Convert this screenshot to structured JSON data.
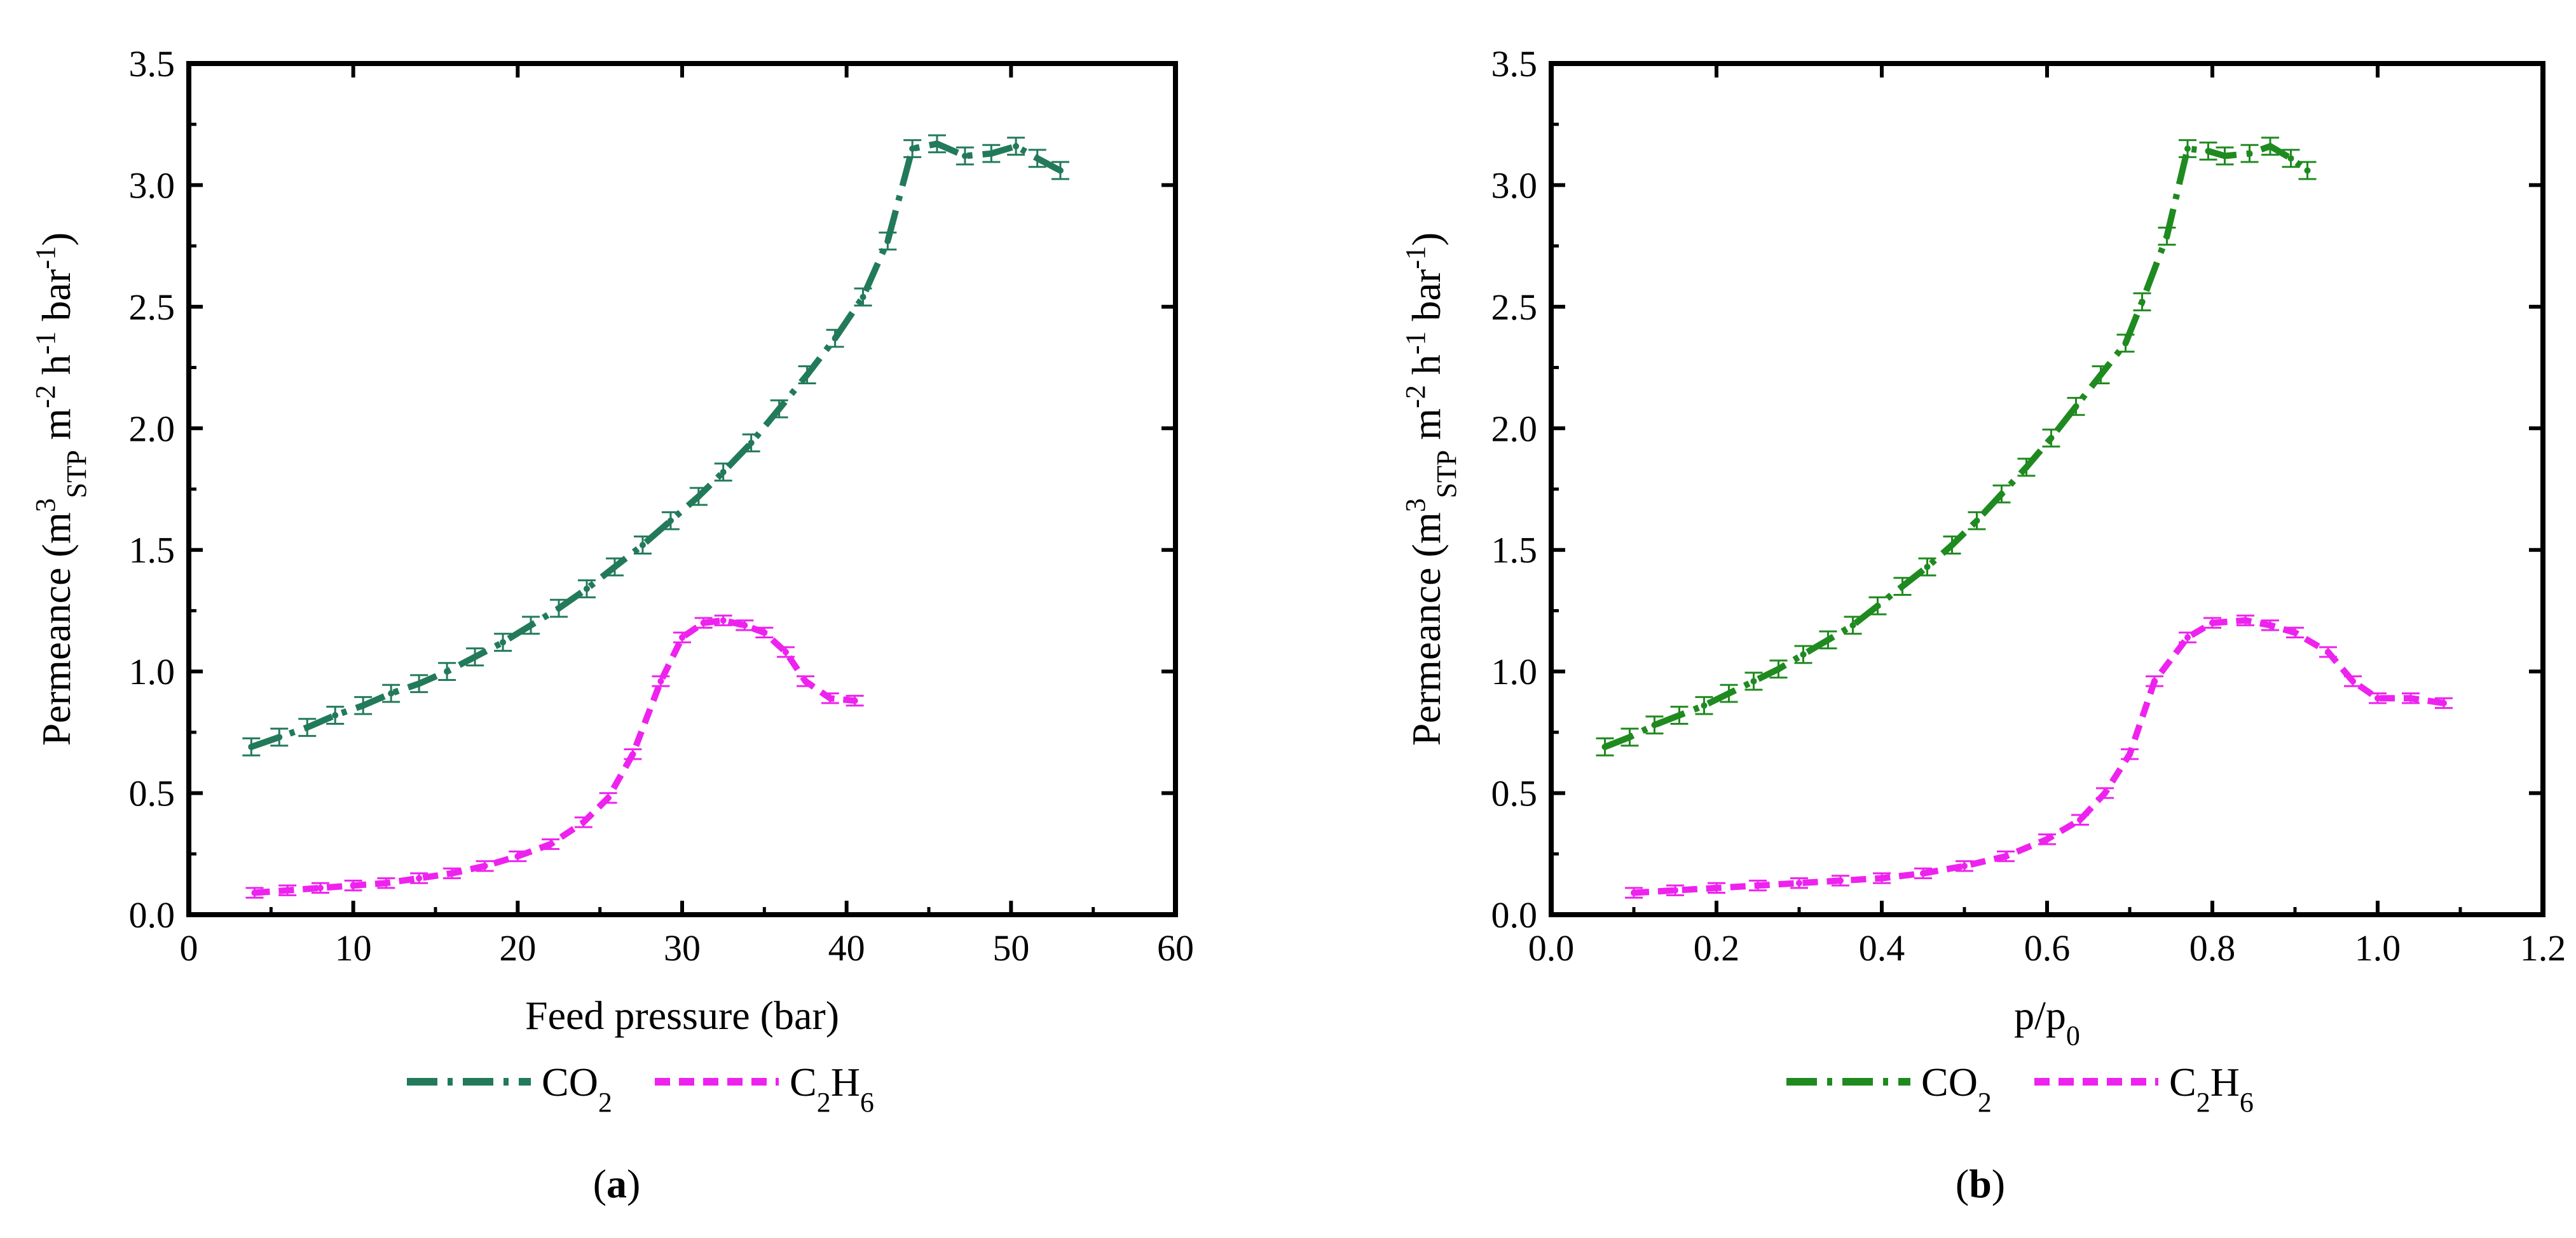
{
  "chart_data": [
    {
      "type": "line",
      "panel_label": "a",
      "xlabel": "Feed pressure (bar)",
      "ylabel": "Permeance (m³STP m⁻² h⁻¹ bar⁻¹)",
      "xlim": [
        0,
        60
      ],
      "ylim": [
        0,
        3.5
      ],
      "xticks": [
        0,
        10,
        20,
        30,
        40,
        50,
        60
      ],
      "yticks": [
        0.0,
        0.5,
        1.0,
        1.5,
        2.0,
        2.5,
        3.0,
        3.5
      ],
      "legend": [
        "CO2",
        "C2H6"
      ],
      "series": [
        {
          "name": "CO2",
          "color": "#227a5a",
          "style": "dash-dot",
          "x": [
            3.8,
            5.5,
            7.2,
            8.9,
            10.6,
            12.3,
            14.0,
            15.7,
            17.4,
            19.1,
            20.8,
            22.5,
            24.2,
            25.9,
            27.6,
            29.3,
            31.0,
            32.5,
            34.2,
            35.9,
            37.6,
            39.3,
            41.0,
            42.5,
            44.0,
            45.5,
            47.2,
            48.8,
            50.3,
            51.6,
            53.0
          ],
          "y": [
            0.69,
            0.73,
            0.77,
            0.82,
            0.86,
            0.91,
            0.95,
            1.0,
            1.06,
            1.12,
            1.19,
            1.26,
            1.34,
            1.43,
            1.52,
            1.62,
            1.72,
            1.82,
            1.94,
            2.08,
            2.22,
            2.37,
            2.54,
            2.77,
            3.15,
            3.17,
            3.12,
            3.13,
            3.16,
            3.11,
            3.06
          ]
        },
        {
          "name": "C2H6",
          "color": "#ee22ee",
          "style": "dash",
          "x": [
            4.0,
            6.0,
            8.0,
            10.0,
            12.0,
            14.0,
            16.0,
            18.0,
            20.0,
            22.0,
            24.0,
            25.5,
            27.0,
            28.7,
            30.0,
            31.3,
            32.5,
            33.8,
            35.0,
            36.3,
            37.5,
            39.0,
            40.5
          ],
          "y": [
            0.09,
            0.1,
            0.11,
            0.12,
            0.13,
            0.15,
            0.17,
            0.2,
            0.24,
            0.29,
            0.38,
            0.48,
            0.66,
            0.96,
            1.14,
            1.2,
            1.21,
            1.19,
            1.16,
            1.08,
            0.96,
            0.89,
            0.88
          ]
        }
      ]
    },
    {
      "type": "line",
      "panel_label": "b",
      "xlabel": "p/p0",
      "ylabel": "Permeance (m³STP m⁻² h⁻¹ bar⁻¹)",
      "xlim": [
        0.0,
        1.2
      ],
      "ylim": [
        0,
        3.5
      ],
      "xticks": [
        0.0,
        0.2,
        0.4,
        0.6,
        0.8,
        1.0,
        1.2
      ],
      "yticks": [
        0.0,
        0.5,
        1.0,
        1.5,
        2.0,
        2.5,
        3.0,
        3.5
      ],
      "legend": [
        "CO2",
        "C2H6"
      ],
      "series": [
        {
          "name": "CO2",
          "color": "#1f8a1f",
          "style": "dash-dot",
          "x": [
            0.065,
            0.095,
            0.125,
            0.155,
            0.185,
            0.215,
            0.245,
            0.275,
            0.305,
            0.335,
            0.365,
            0.395,
            0.425,
            0.455,
            0.485,
            0.515,
            0.545,
            0.575,
            0.605,
            0.635,
            0.665,
            0.695,
            0.715,
            0.745,
            0.77,
            0.795,
            0.815,
            0.845,
            0.87,
            0.895,
            0.915
          ],
          "y": [
            0.69,
            0.73,
            0.78,
            0.82,
            0.86,
            0.91,
            0.96,
            1.01,
            1.07,
            1.13,
            1.19,
            1.27,
            1.35,
            1.43,
            1.52,
            1.62,
            1.73,
            1.84,
            1.96,
            2.09,
            2.22,
            2.35,
            2.52,
            2.79,
            3.15,
            3.14,
            3.12,
            3.13,
            3.16,
            3.11,
            3.06
          ]
        },
        {
          "name": "C2H6",
          "color": "#ee22ee",
          "style": "dash",
          "x": [
            0.1,
            0.15,
            0.2,
            0.25,
            0.3,
            0.35,
            0.4,
            0.45,
            0.5,
            0.55,
            0.6,
            0.64,
            0.67,
            0.7,
            0.73,
            0.77,
            0.8,
            0.84,
            0.87,
            0.9,
            0.94,
            0.97,
            1.0,
            1.04,
            1.08
          ],
          "y": [
            0.09,
            0.1,
            0.11,
            0.12,
            0.13,
            0.14,
            0.15,
            0.17,
            0.2,
            0.24,
            0.31,
            0.39,
            0.5,
            0.66,
            0.96,
            1.14,
            1.2,
            1.21,
            1.19,
            1.16,
            1.08,
            0.96,
            0.89,
            0.89,
            0.87
          ]
        }
      ]
    }
  ]
}
